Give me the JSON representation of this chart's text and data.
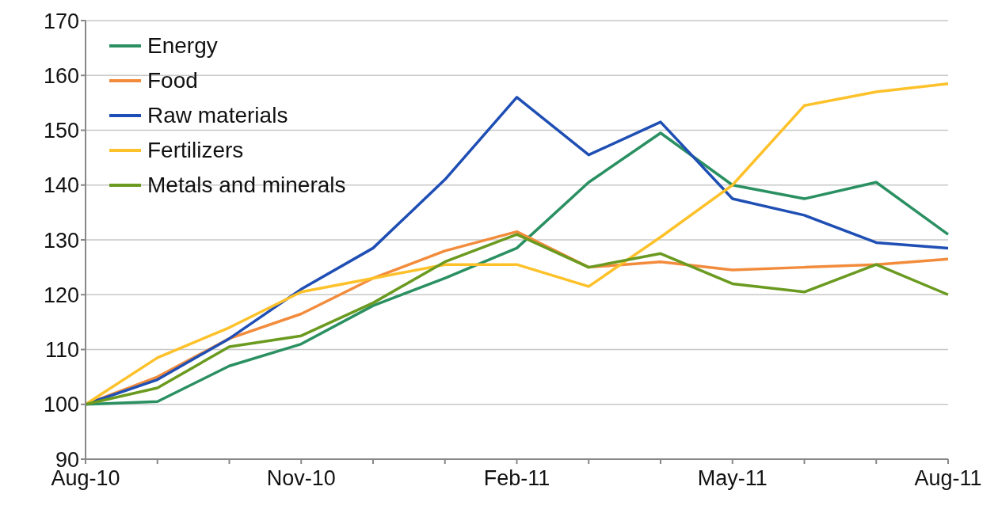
{
  "chart_data": {
    "type": "line",
    "categories": [
      "Aug-10",
      null,
      null,
      "Nov-10",
      null,
      null,
      "Feb-11",
      null,
      null,
      "May-11",
      null,
      null,
      "Aug-11"
    ],
    "series": [
      {
        "name": "Energy",
        "color": "#2a9062",
        "values": [
          100,
          100.5,
          107,
          111,
          118,
          123,
          128.5,
          140.5,
          149.5,
          140,
          137.5,
          140.5,
          131
        ]
      },
      {
        "name": "Food",
        "color": "#f28c3c",
        "values": [
          100,
          105,
          112,
          116.5,
          123,
          128,
          131.5,
          125,
          126,
          124.5,
          125,
          125.5,
          126.5
        ]
      },
      {
        "name": "Raw materials",
        "color": "#1f4fb4",
        "values": [
          100,
          104.5,
          112,
          121,
          128.5,
          141,
          156,
          145.5,
          151.5,
          137.5,
          134.5,
          129.5,
          128.5
        ]
      },
      {
        "name": "Fertilizers",
        "color": "#fdc12a",
        "values": [
          100,
          108.5,
          114,
          120.5,
          123,
          125.5,
          125.5,
          121.5,
          130.5,
          140,
          154.5,
          157,
          158.5
        ]
      },
      {
        "name": "Metals and minerals",
        "color": "#6a9a1f",
        "values": [
          100,
          103,
          110.5,
          112.5,
          118.5,
          126,
          131,
          125,
          127.5,
          122,
          120.5,
          125.5,
          120
        ]
      }
    ],
    "ylim": [
      90,
      170
    ],
    "yticks": [
      90,
      100,
      110,
      120,
      130,
      140,
      150,
      160,
      170
    ],
    "grid": "y",
    "legend": "top left",
    "marker": "none",
    "line_style": "solid"
  }
}
